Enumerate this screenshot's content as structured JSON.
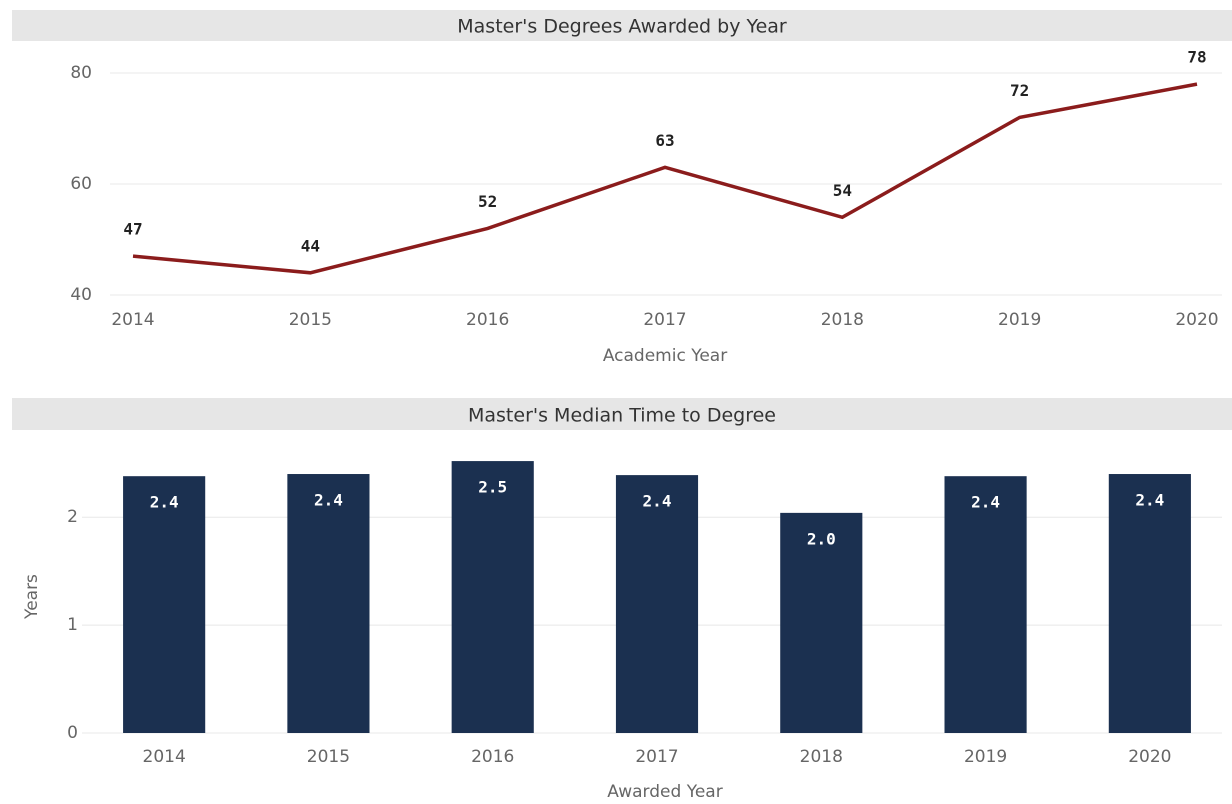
{
  "chart_data": [
    {
      "type": "line",
      "title": "Master's Degrees Awarded by Year",
      "x_label": "Academic Year",
      "categories": [
        "2014",
        "2015",
        "2016",
        "2017",
        "2018",
        "2019",
        "2020"
      ],
      "values": [
        47,
        44,
        52,
        63,
        54,
        72,
        78
      ],
      "color": "#8b1c1c",
      "ylim": [
        40,
        80
      ],
      "yticks": [
        40,
        60,
        80
      ],
      "grid": true
    },
    {
      "type": "bar",
      "title": "Master's Median Time to Degree",
      "x_label": "Awarded Year",
      "y_label": "Years",
      "categories": [
        "2014",
        "2015",
        "2016",
        "2017",
        "2018",
        "2019",
        "2020"
      ],
      "values": [
        2.38,
        2.4,
        2.52,
        2.39,
        2.04,
        2.38,
        2.4
      ],
      "value_labels": [
        "2.4",
        "2.4",
        "2.5",
        "2.4",
        "2.0",
        "2.4",
        "2.4"
      ],
      "color": "#1b3050",
      "ylim": [
        0,
        2.53
      ],
      "yticks": [
        0,
        1,
        2
      ],
      "grid": true
    }
  ]
}
